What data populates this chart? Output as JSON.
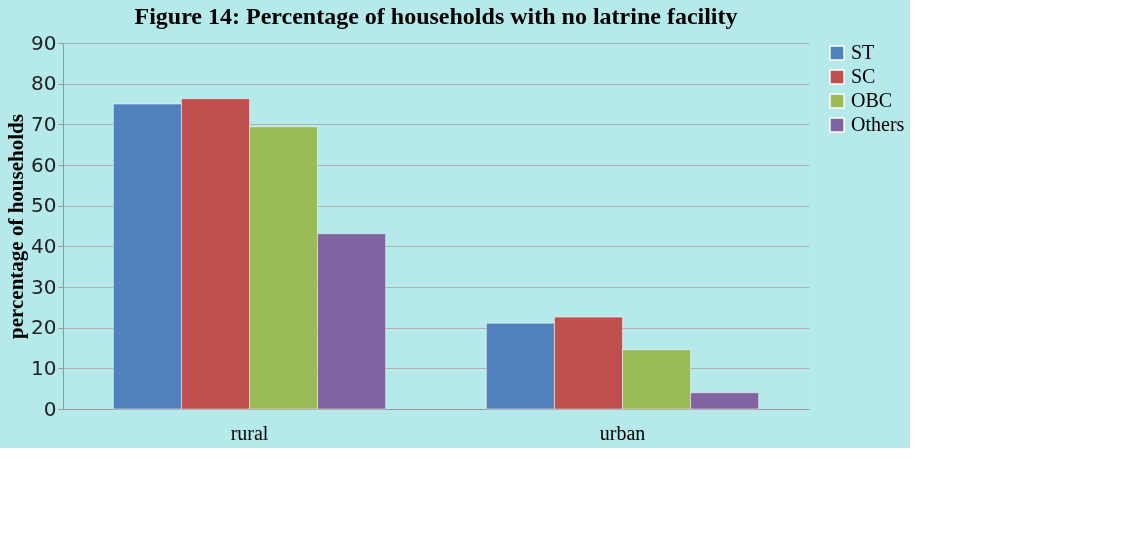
{
  "chart_data": {
    "type": "bar",
    "title": "Figure 14: Percentage of households with no latrine facility",
    "ylabel": "percentage of households",
    "categories": [
      "rural",
      "urban"
    ],
    "series": [
      {
        "name": "ST",
        "color": "#4f81bd",
        "values": [
          75.0,
          21.1
        ]
      },
      {
        "name": "SC",
        "color": "#c0504d",
        "values": [
          76.3,
          22.6
        ]
      },
      {
        "name": "OBC",
        "color": "#9bbb59",
        "values": [
          69.4,
          14.6
        ]
      },
      {
        "name": "Others",
        "color": "#8064a2",
        "values": [
          43.1,
          4.0
        ]
      }
    ],
    "ylim": [
      0,
      90
    ],
    "yticks": [
      0,
      10,
      20,
      30,
      40,
      50,
      60,
      70,
      80,
      90
    ],
    "grid": "y",
    "legend": "right"
  }
}
